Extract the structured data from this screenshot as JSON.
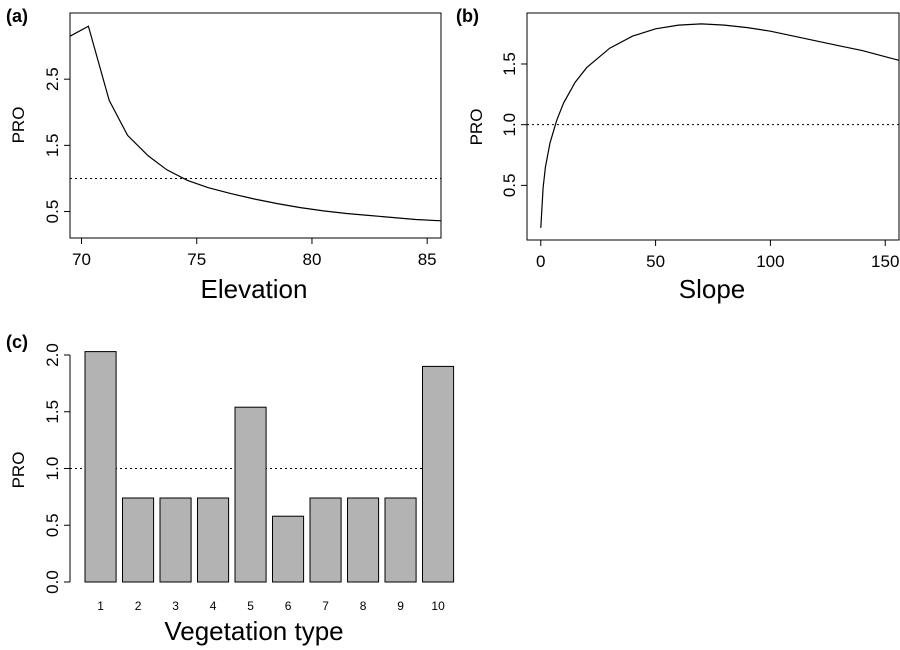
{
  "chart_data": [
    {
      "id": "a",
      "panel_label": "(a)",
      "type": "line",
      "xlabel": "Elevation",
      "ylabel": "PRO",
      "xlim": [
        69.5,
        85.6
      ],
      "ylim": [
        0.1,
        3.5
      ],
      "xticks": [
        "70",
        "75",
        "80",
        "85"
      ],
      "yticks": [
        "0.5",
        "1.5",
        "2.5"
      ],
      "reference_line": 1.0,
      "grid": false,
      "series": [
        {
          "x": [
            69.5,
            70.3,
            71.2,
            72.0,
            72.9,
            73.7,
            74.6,
            75.5,
            76.5,
            77.5,
            78.5,
            79.5,
            80.5,
            81.5,
            82.5,
            83.5,
            84.5,
            85.6
          ],
          "y": [
            3.15,
            3.3,
            2.18,
            1.65,
            1.34,
            1.13,
            0.97,
            0.86,
            0.77,
            0.69,
            0.62,
            0.56,
            0.51,
            0.47,
            0.44,
            0.41,
            0.38,
            0.36
          ]
        }
      ]
    },
    {
      "id": "b",
      "panel_label": "(b)",
      "type": "line",
      "xlabel": "Slope",
      "ylabel": "PRO",
      "xlim": [
        -6,
        156
      ],
      "ylim": [
        0.05,
        1.92
      ],
      "xticks": [
        "0",
        "50",
        "100",
        "150"
      ],
      "yticks": [
        "0.5",
        "1.0",
        "1.5"
      ],
      "reference_line": 1.0,
      "grid": false,
      "series": [
        {
          "x": [
            0,
            1,
            2,
            4,
            7,
            10,
            15,
            20,
            30,
            40,
            50,
            60,
            70,
            80,
            90,
            100,
            110,
            120,
            130,
            140,
            150,
            156
          ],
          "y": [
            0.15,
            0.48,
            0.65,
            0.85,
            1.04,
            1.18,
            1.35,
            1.47,
            1.63,
            1.73,
            1.79,
            1.82,
            1.83,
            1.82,
            1.8,
            1.77,
            1.73,
            1.69,
            1.65,
            1.61,
            1.56,
            1.53
          ]
        }
      ]
    },
    {
      "id": "c",
      "panel_label": "(c)",
      "type": "bar",
      "xlabel": "Vegetation type",
      "ylabel": "PRO",
      "ylim": [
        0,
        2.0
      ],
      "yticks": [
        "0.0",
        "0.5",
        "1.0",
        "1.5",
        "2.0"
      ],
      "reference_line": 1.0,
      "grid": false,
      "categories": [
        "1",
        "2",
        "3",
        "4",
        "5",
        "6",
        "7",
        "8",
        "9",
        "10"
      ],
      "values": [
        2.03,
        0.74,
        0.74,
        0.74,
        1.54,
        0.58,
        0.74,
        0.74,
        0.74,
        1.9
      ]
    }
  ]
}
